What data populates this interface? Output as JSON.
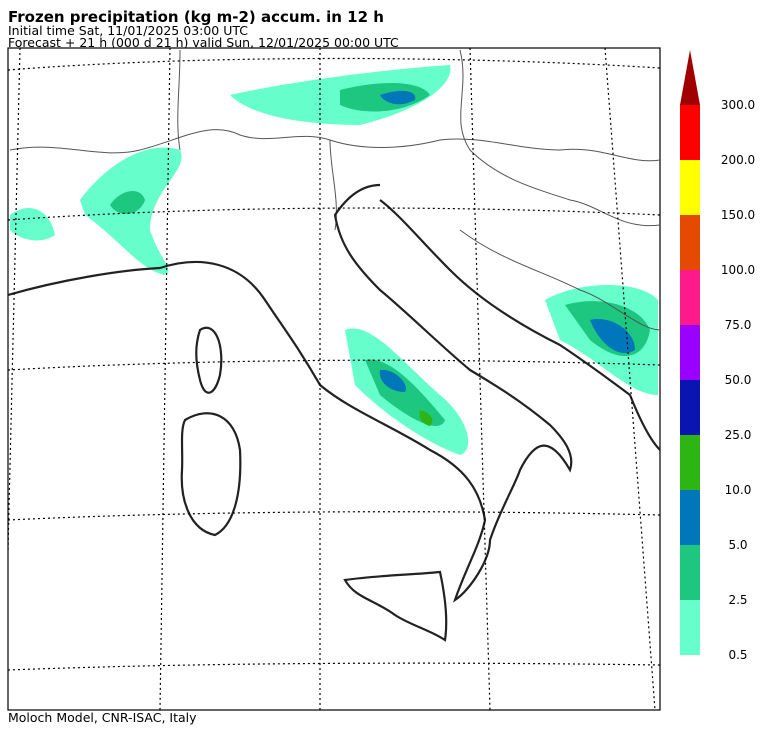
{
  "header": {
    "title": "Frozen precipitation (kg m-2) accum. in 12 h",
    "initial_time": "Initial time  Sat, 11/01/2025  03:00 UTC",
    "forecast": "Forecast  +  21 h  (000 d 21 h)  valid Sun, 12/01/2025 00:00 UTC"
  },
  "legend": {
    "labels": [
      "0.5",
      "2.5",
      "5.0",
      "10.0",
      "25.0",
      "50.0",
      "75.0",
      "100.0",
      "150.0",
      "200.0",
      "300.0"
    ],
    "colors": [
      "#66ffcc",
      "#1ec77f",
      "#0077bb",
      "#2db514",
      "#0a14b0",
      "#9900ff",
      "#ff1a8c",
      "#e64a00",
      "#ffff00",
      "#ff0000"
    ],
    "arrow_color": "#a00000"
  },
  "footer": "Moloch Model, CNR-ISAC, Italy"
}
